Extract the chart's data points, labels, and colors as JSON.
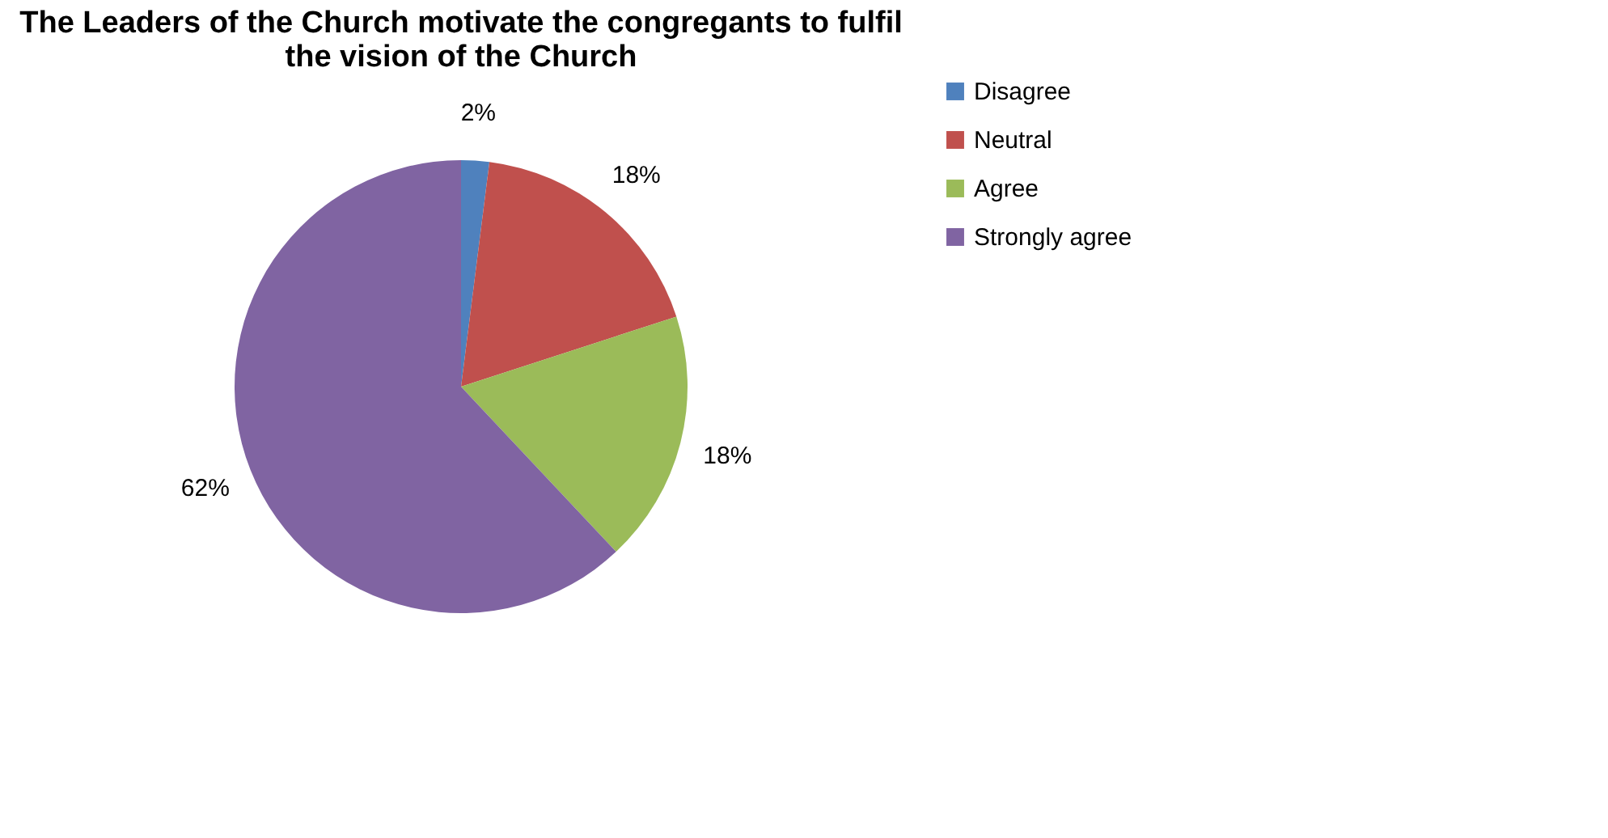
{
  "chart_data": {
    "type": "pie",
    "title": [
      "The Leaders of the Church motivate the congregants to fulfil",
      "the vision of the  Church"
    ],
    "categories": [
      "Disagree",
      "Neutral",
      "Agree",
      "Strongly agree"
    ],
    "values": [
      2,
      18,
      18,
      62
    ],
    "value_labels": [
      "2%",
      "18%",
      "18%",
      "62%"
    ],
    "colors": [
      "#4f81bd",
      "#c0504d",
      "#9bbb59",
      "#8064a2"
    ],
    "legend": "right"
  }
}
